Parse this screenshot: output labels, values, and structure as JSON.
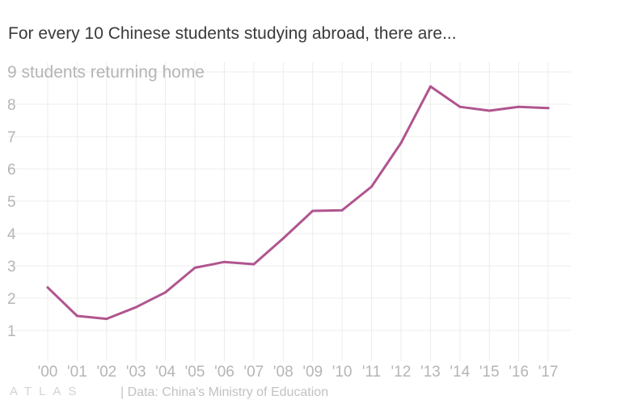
{
  "title": "For every 10 Chinese students studying abroad, there are...",
  "brand": "ATLAS",
  "source": "| Data: China's Ministry of Education",
  "colors": {
    "line": "#b0558f",
    "grid": "#ececec",
    "tick": "#b5b5b5"
  },
  "chart_data": {
    "type": "line",
    "ylabel": "students returning home",
    "x": [
      "'00",
      "'01",
      "'02",
      "'03",
      "'04",
      "'05",
      "'06",
      "'07",
      "'08",
      "'09",
      "'10",
      "'11",
      "'12",
      "'13",
      "'14",
      "'15",
      "'16",
      "'17"
    ],
    "yticks": [
      1,
      2,
      3,
      4,
      5,
      6,
      7,
      8,
      9
    ],
    "ylim": [
      0.5,
      9
    ],
    "grid": true,
    "series": [
      {
        "values": [
          2.33,
          1.45,
          1.36,
          1.72,
          2.18,
          2.94,
          3.12,
          3.05,
          3.85,
          4.7,
          4.72,
          5.45,
          6.8,
          8.55,
          7.92,
          7.8,
          7.92,
          7.88
        ]
      }
    ]
  }
}
